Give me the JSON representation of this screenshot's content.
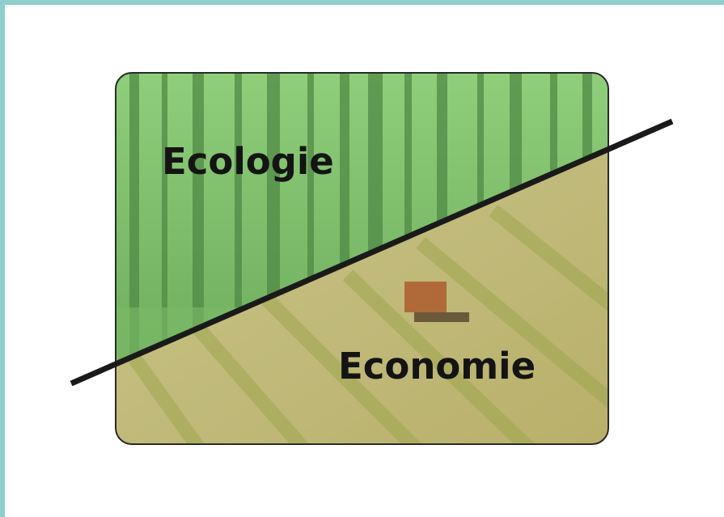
{
  "labels": {
    "top": "Ecologie",
    "bottom": "Economie"
  }
}
